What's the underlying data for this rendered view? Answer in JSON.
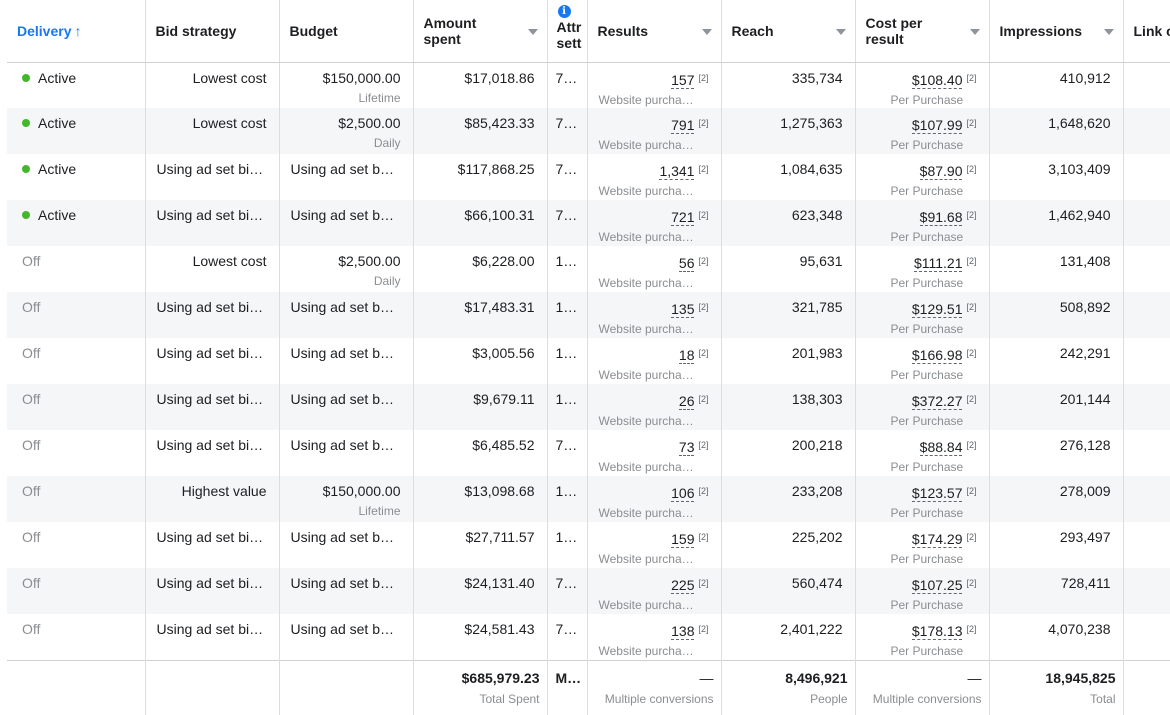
{
  "columns": {
    "delivery": "Delivery",
    "sort_arrow": "↑",
    "bid_strategy": "Bid strategy",
    "budget": "Budget",
    "amount_spent": "Amount spent",
    "attribution": "Attr sett",
    "info_glyph": "i",
    "results": "Results",
    "reach": "Reach",
    "cost_per_result": "Cost per result",
    "impressions": "Impressions",
    "link_clicks": "Link c"
  },
  "footnote_mark": "[2]",
  "rows": [
    {
      "status": "Active",
      "bid": "Lowest cost",
      "budget": "$150,000.00",
      "budget_type": "Lifetime",
      "spent": "$17,018.86",
      "attr": "7…",
      "results": "157",
      "results_sub": "Website purcha…",
      "reach": "335,734",
      "cpr": "$108.40",
      "cpr_sub": "Per Purchase",
      "impressions": "410,912"
    },
    {
      "status": "Active",
      "bid": "Lowest cost",
      "budget": "$2,500.00",
      "budget_type": "Daily",
      "spent": "$85,423.33",
      "attr": "7…",
      "results": "791",
      "results_sub": "Website purcha…",
      "reach": "1,275,363",
      "cpr": "$107.99",
      "cpr_sub": "Per Purchase",
      "impressions": "1,648,620"
    },
    {
      "status": "Active",
      "bid": "Using ad set bid…",
      "budget": "Using ad set bu…",
      "budget_type": "",
      "spent": "$117,868.25",
      "attr": "7…",
      "results": "1,341",
      "results_sub": "Website purcha…",
      "reach": "1,084,635",
      "cpr": "$87.90",
      "cpr_sub": "Per Purchase",
      "impressions": "3,103,409"
    },
    {
      "status": "Active",
      "bid": "Using ad set bid…",
      "budget": "Using ad set bu…",
      "budget_type": "",
      "spent": "$66,100.31",
      "attr": "7…",
      "results": "721",
      "results_sub": "Website purcha…",
      "reach": "623,348",
      "cpr": "$91.68",
      "cpr_sub": "Per Purchase",
      "impressions": "1,462,940"
    },
    {
      "status": "Off",
      "bid": "Lowest cost",
      "budget": "$2,500.00",
      "budget_type": "Daily",
      "spent": "$6,228.00",
      "attr": "1…",
      "results": "56",
      "results_sub": "Website purcha…",
      "reach": "95,631",
      "cpr": "$111.21",
      "cpr_sub": "Per Purchase",
      "impressions": "131,408"
    },
    {
      "status": "Off",
      "bid": "Using ad set bid…",
      "budget": "Using ad set bu…",
      "budget_type": "",
      "spent": "$17,483.31",
      "attr": "1…",
      "results": "135",
      "results_sub": "Website purcha…",
      "reach": "321,785",
      "cpr": "$129.51",
      "cpr_sub": "Per Purchase",
      "impressions": "508,892"
    },
    {
      "status": "Off",
      "bid": "Using ad set bid…",
      "budget": "Using ad set bu…",
      "budget_type": "",
      "spent": "$3,005.56",
      "attr": "1…",
      "results": "18",
      "results_sub": "Website purcha…",
      "reach": "201,983",
      "cpr": "$166.98",
      "cpr_sub": "Per Purchase",
      "impressions": "242,291"
    },
    {
      "status": "Off",
      "bid": "Using ad set bid…",
      "budget": "Using ad set bu…",
      "budget_type": "",
      "spent": "$9,679.11",
      "attr": "1…",
      "results": "26",
      "results_sub": "Website purcha…",
      "reach": "138,303",
      "cpr": "$372.27",
      "cpr_sub": "Per Purchase",
      "impressions": "201,144"
    },
    {
      "status": "Off",
      "bid": "Using ad set bid…",
      "budget": "Using ad set bu…",
      "budget_type": "",
      "spent": "$6,485.52",
      "attr": "7…",
      "results": "73",
      "results_sub": "Website purcha…",
      "reach": "200,218",
      "cpr": "$88.84",
      "cpr_sub": "Per Purchase",
      "impressions": "276,128"
    },
    {
      "status": "Off",
      "bid": "Highest value",
      "budget": "$150,000.00",
      "budget_type": "Lifetime",
      "spent": "$13,098.68",
      "attr": "1…",
      "results": "106",
      "results_sub": "Website purcha…",
      "reach": "233,208",
      "cpr": "$123.57",
      "cpr_sub": "Per Purchase",
      "impressions": "278,009"
    },
    {
      "status": "Off",
      "bid": "Using ad set bid…",
      "budget": "Using ad set bu…",
      "budget_type": "",
      "spent": "$27,711.57",
      "attr": "1…",
      "results": "159",
      "results_sub": "Website purcha…",
      "reach": "225,202",
      "cpr": "$174.29",
      "cpr_sub": "Per Purchase",
      "impressions": "293,497"
    },
    {
      "status": "Off",
      "bid": "Using ad set bid…",
      "budget": "Using ad set bu…",
      "budget_type": "",
      "spent": "$24,131.40",
      "attr": "7…",
      "results": "225",
      "results_sub": "Website purcha…",
      "reach": "560,474",
      "cpr": "$107.25",
      "cpr_sub": "Per Purchase",
      "impressions": "728,411"
    },
    {
      "status": "Off",
      "bid": "Using ad set bid…",
      "budget": "Using ad set bu…",
      "budget_type": "",
      "spent": "$24,581.43",
      "attr": "7…",
      "results": "138",
      "results_sub": "Website purcha…",
      "reach": "2,401,222",
      "cpr": "$178.13",
      "cpr_sub": "Per Purchase",
      "impressions": "4,070,238"
    }
  ],
  "totals": {
    "spent": "$685,979.23",
    "spent_sub": "Total Spent",
    "attr": "M…",
    "results": "—",
    "results_sub": "Multiple conversions",
    "reach": "8,496,921",
    "reach_sub": "People",
    "cpr": "—",
    "cpr_sub": "Multiple conversions",
    "impressions": "18,945,825",
    "impressions_sub": "Total"
  }
}
